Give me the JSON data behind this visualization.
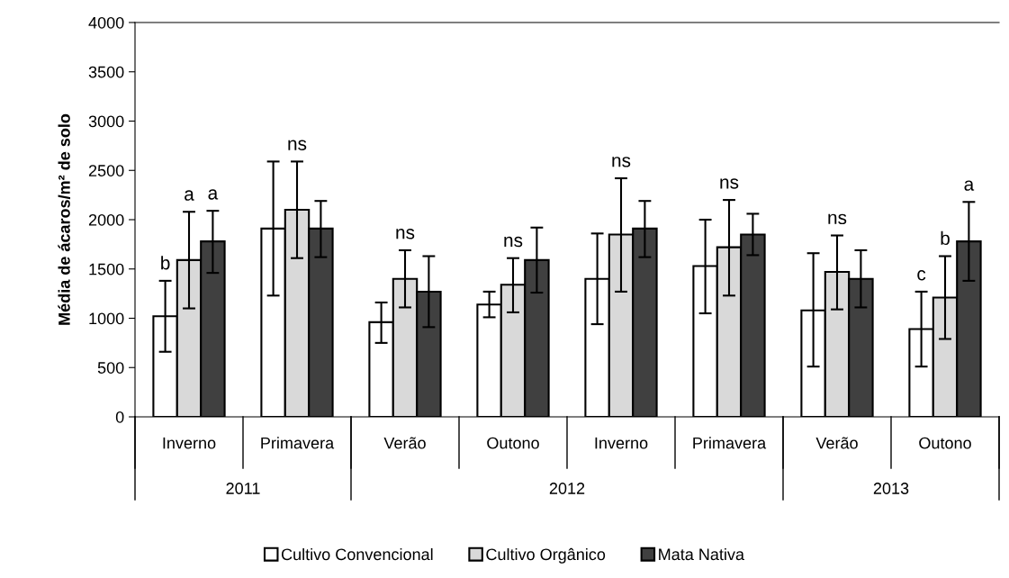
{
  "chart_data": {
    "type": "bar",
    "ylabel": "Média de ácaros/m² de solo",
    "categories": [
      "Inverno",
      "Primavera",
      "Verão",
      "Outono",
      "Inverno",
      "Primavera",
      "Verão",
      "Outono"
    ],
    "series": [
      {
        "name": "Cultivo Convencional",
        "color": "#ffffff",
        "values": [
          1020,
          1910,
          960,
          1140,
          1400,
          1530,
          1080,
          890
        ],
        "errors": [
          [
            660,
            1380
          ],
          [
            1230,
            2590
          ],
          [
            750,
            1160
          ],
          [
            1010,
            1270
          ],
          [
            940,
            1860
          ],
          [
            1050,
            2000
          ],
          [
            510,
            1660
          ],
          [
            510,
            1270
          ]
        ]
      },
      {
        "name": "Cultivo Orgânico",
        "color": "#d9d9d9",
        "values": [
          1590,
          2100,
          1400,
          1340,
          1850,
          1720,
          1470,
          1210
        ],
        "errors": [
          [
            1100,
            2080
          ],
          [
            1610,
            2590
          ],
          [
            1110,
            1690
          ],
          [
            1060,
            1610
          ],
          [
            1270,
            2420
          ],
          [
            1230,
            2200
          ],
          [
            1090,
            1840
          ],
          [
            790,
            1630
          ]
        ]
      },
      {
        "name": "Mata Nativa",
        "color": "#404040",
        "values": [
          1780,
          1910,
          1270,
          1590,
          1910,
          1850,
          1400,
          1780
        ],
        "errors": [
          [
            1460,
            2090
          ],
          [
            1620,
            2190
          ],
          [
            910,
            1630
          ],
          [
            1260,
            1920
          ],
          [
            1620,
            2190
          ],
          [
            1640,
            2060
          ],
          [
            1110,
            1690
          ],
          [
            1380,
            2180
          ]
        ]
      }
    ],
    "ylim": [
      0,
      4000
    ],
    "yticks": [
      0,
      500,
      1000,
      1500,
      2000,
      2500,
      3000,
      3500,
      4000
    ],
    "legend": "bottom",
    "annotations": [
      {
        "text": "b",
        "x": "Inverno",
        "y": 1380
      },
      {
        "text": "a",
        "x": "Inverno",
        "y": 2080
      },
      {
        "text": "a",
        "x": "Inverno",
        "y": 2090
      },
      {
        "text": "ns",
        "x": "Primavera",
        "y": 2590
      },
      {
        "text": "ns",
        "x": "Verão",
        "y": 1690
      },
      {
        "text": "ns",
        "x": "Outono",
        "y": 1610
      },
      {
        "text": "ns",
        "y": 2420
      },
      {
        "text": "ns",
        "y": 2200
      },
      {
        "text": "ns",
        "y": 1840
      },
      {
        "text": "c",
        "y": 1270
      },
      {
        "text": "b",
        "y": 1630
      },
      {
        "text": "a",
        "y": 2180
      },
      "2011",
      "2012",
      "2013"
    ]
  }
}
